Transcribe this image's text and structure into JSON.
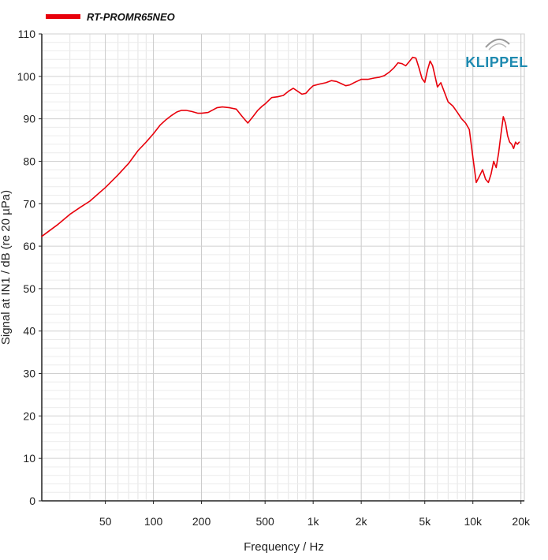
{
  "chart_data": {
    "type": "line",
    "title": "",
    "xlabel": "Frequency / Hz",
    "ylabel": "Signal at IN1 / dB (re 20 µPa)",
    "x_scale": "log",
    "xlim": [
      20,
      21000
    ],
    "ylim": [
      0,
      110
    ],
    "grid": true,
    "legend_position": "top-left",
    "logo": "KLIPPEL",
    "x_ticks": [
      {
        "value": 50,
        "label": "50"
      },
      {
        "value": 100,
        "label": "100"
      },
      {
        "value": 200,
        "label": "200"
      },
      {
        "value": 500,
        "label": "500"
      },
      {
        "value": 1000,
        "label": "1k"
      },
      {
        "value": 2000,
        "label": "2k"
      },
      {
        "value": 5000,
        "label": "5k"
      },
      {
        "value": 10000,
        "label": "10k"
      },
      {
        "value": 20000,
        "label": "20k"
      }
    ],
    "y_ticks": [
      0,
      10,
      20,
      30,
      40,
      50,
      60,
      70,
      80,
      90,
      100,
      110
    ],
    "series": [
      {
        "name": "RT-PROMR65NEO",
        "color": "#e8000b",
        "x": [
          20,
          25,
          30,
          35,
          40,
          50,
          60,
          70,
          80,
          90,
          100,
          110,
          120,
          130,
          140,
          150,
          160,
          175,
          190,
          200,
          220,
          250,
          270,
          300,
          330,
          360,
          390,
          420,
          450,
          480,
          500,
          550,
          600,
          650,
          700,
          750,
          800,
          850,
          900,
          950,
          1000,
          1100,
          1200,
          1300,
          1400,
          1500,
          1600,
          1700,
          1800,
          1900,
          2000,
          2200,
          2400,
          2600,
          2800,
          3000,
          3200,
          3400,
          3600,
          3800,
          4000,
          4200,
          4400,
          4600,
          4800,
          5000,
          5200,
          5400,
          5600,
          5800,
          6000,
          6300,
          6600,
          7000,
          7500,
          8000,
          8500,
          9000,
          9500,
          10000,
          10500,
          11000,
          11500,
          12000,
          12500,
          13000,
          13500,
          14000,
          14500,
          15000,
          15500,
          16000,
          16500,
          17000,
          17500,
          18000,
          18500,
          19000,
          19500
        ],
        "y": [
          62.3,
          65,
          67.5,
          69.2,
          70.6,
          73.8,
          76.8,
          79.5,
          82.5,
          84.5,
          86.5,
          88.5,
          89.8,
          90.8,
          91.6,
          92,
          92,
          91.7,
          91.3,
          91.3,
          91.5,
          92.6,
          92.8,
          92.6,
          92.3,
          90.5,
          89,
          90.5,
          92,
          93,
          93.5,
          95,
          95.2,
          95.5,
          96.5,
          97.2,
          96.5,
          95.8,
          96,
          97,
          97.8,
          98.2,
          98.5,
          99,
          98.8,
          98.3,
          97.8,
          98,
          98.5,
          98.9,
          99.3,
          99.3,
          99.6,
          99.8,
          100.2,
          101,
          102,
          103.2,
          103,
          102.5,
          103.5,
          104.5,
          104.3,
          102,
          99.5,
          98.6,
          101.5,
          103.6,
          102.5,
          100,
          97.5,
          98.5,
          96.5,
          94,
          93,
          91.5,
          90,
          89,
          87.5,
          81,
          75,
          76.5,
          78,
          75.8,
          75,
          77,
          80,
          78.5,
          82,
          86.5,
          90.5,
          89,
          86,
          84.5,
          84,
          83,
          84.5,
          84,
          84.5
        ]
      }
    ]
  }
}
